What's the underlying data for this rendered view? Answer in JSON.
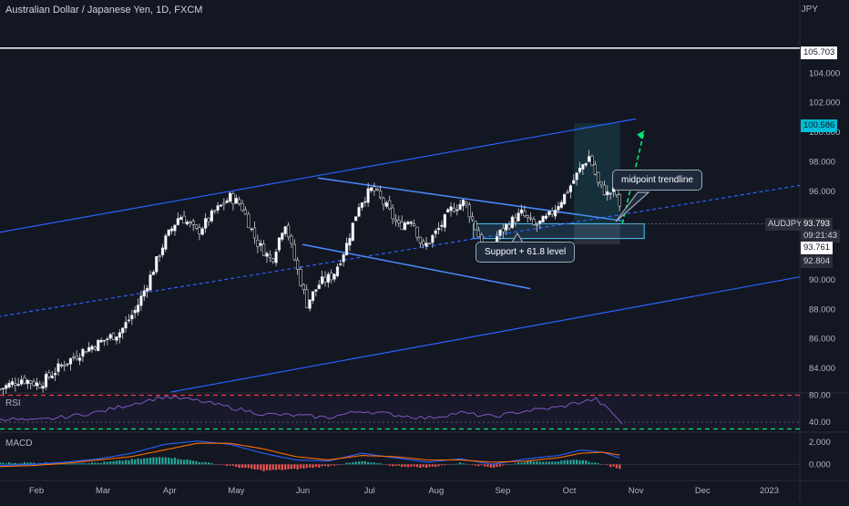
{
  "header": {
    "title": "Australian Dollar / Japanese Yen, 1D, FXCM",
    "currency": "JPY"
  },
  "price_tags": {
    "hline": "105.703",
    "target": "100.586",
    "symbol": "AUDJPY",
    "last": "93.793",
    "countdown": "09:21:43",
    "bid": "93.761",
    "support": "92.804"
  },
  "annotations": {
    "midpoint": "midpoint trendline",
    "support": "Support + 61.8 level"
  },
  "panes": {
    "rsi": "RSI",
    "macd": "MACD"
  },
  "colors": {
    "background": "#131722",
    "channel": "#2962ff",
    "up_candle": "#ffffff",
    "down_candle": "#000000",
    "rsi_line": "#7e57c2",
    "rsi_band": "#f23645",
    "rsi_mid": "#00e676",
    "macd_line": "#2962ff",
    "signal_line": "#ff6d00",
    "hist_up": "#26a69a",
    "hist_down": "#ef5350",
    "target_arrow": "#00e676",
    "target_tag": "#00bcd4"
  },
  "chart_data": {
    "type": "candlestick",
    "title": "Australian Dollar / Japanese Yen, 1D, FXCM",
    "x_ticks": [
      "Feb",
      "Mar",
      "Apr",
      "May",
      "Jun",
      "Jul",
      "Aug",
      "Sep",
      "Oct",
      "Nov",
      "Dec",
      "2023"
    ],
    "y_ticks": [
      "84.000",
      "86.000",
      "88.000",
      "90.000",
      "96.000",
      "98.000",
      "100.000",
      "102.000",
      "104.000"
    ],
    "ylim": [
      82.4,
      107.6
    ],
    "horizontal_line": 105.703,
    "close_path": [
      [
        0,
        82.6
      ],
      [
        10,
        83.3
      ],
      [
        18,
        82.9
      ],
      [
        28,
        84.2
      ],
      [
        38,
        85.2
      ],
      [
        46,
        85.8
      ],
      [
        55,
        86.5
      ],
      [
        62,
        88.0
      ],
      [
        68,
        90.0
      ],
      [
        75,
        92.6
      ],
      [
        82,
        94.4
      ],
      [
        90,
        93.2
      ],
      [
        98,
        94.6
      ],
      [
        105,
        95.6
      ],
      [
        110,
        95.1
      ],
      [
        117,
        92.6
      ],
      [
        124,
        91.3
      ],
      [
        130,
        94.0
      ],
      [
        134,
        91.6
      ],
      [
        140,
        88.4
      ],
      [
        146,
        89.8
      ],
      [
        152,
        90.3
      ],
      [
        158,
        92.3
      ],
      [
        164,
        95.2
      ],
      [
        170,
        96.2
      ],
      [
        176,
        95.0
      ],
      [
        182,
        93.6
      ],
      [
        188,
        94.2
      ],
      [
        193,
        92.1
      ],
      [
        200,
        93.4
      ],
      [
        206,
        94.8
      ],
      [
        212,
        95.3
      ],
      [
        218,
        93.2
      ],
      [
        222,
        91.0
      ],
      [
        226,
        92.8
      ],
      [
        232,
        93.8
      ],
      [
        238,
        94.5
      ],
      [
        244,
        93.6
      ],
      [
        250,
        94.2
      ],
      [
        254,
        95.0
      ],
      [
        258,
        95.8
      ],
      [
        262,
        96.8
      ],
      [
        266,
        97.8
      ],
      [
        269,
        98.4
      ],
      [
        273,
        96.5
      ],
      [
        277,
        95.8
      ],
      [
        281,
        96.1
      ],
      [
        284,
        93.8
      ]
    ],
    "channel": {
      "upper": [
        [
          -1,
          93.2
        ],
        [
          290,
          100.9
        ]
      ],
      "lower": [
        [
          78,
          82.4
        ],
        [
          365,
          90.2
        ]
      ],
      "midline": [
        [
          -1,
          87.5
        ],
        [
          365,
          96.4
        ]
      ]
    },
    "wedge": {
      "upper": [
        [
          145,
          96.9
        ],
        [
          284,
          94.0
        ]
      ],
      "lower": [
        [
          138,
          92.4
        ],
        [
          242,
          89.4
        ]
      ]
    },
    "support_zone": [
      92.8,
      93.8
    ],
    "projection_box": {
      "x": [
        262,
        283
      ],
      "y": [
        92.4,
        100.6
      ]
    },
    "target_arrow": [
      [
        284,
        93.8
      ],
      [
        294,
        100.1
      ]
    ],
    "rsi": {
      "ylim": [
        28,
        82
      ],
      "levels": [
        80,
        40,
        30
      ],
      "tick_labels": [
        "80.00",
        "40.00"
      ],
      "values": [
        [
          0,
          46
        ],
        [
          15,
          42
        ],
        [
          30,
          48
        ],
        [
          45,
          55
        ],
        [
          60,
          67
        ],
        [
          75,
          78
        ],
        [
          90,
          72
        ],
        [
          105,
          62
        ],
        [
          120,
          52
        ],
        [
          135,
          50
        ],
        [
          150,
          47
        ],
        [
          165,
          57
        ],
        [
          180,
          51
        ],
        [
          195,
          46
        ],
        [
          210,
          54
        ],
        [
          225,
          48
        ],
        [
          240,
          57
        ],
        [
          255,
          62
        ],
        [
          265,
          70
        ],
        [
          272,
          74
        ],
        [
          280,
          52
        ],
        [
          284,
          38
        ]
      ]
    },
    "macd": {
      "ylim": [
        -1.2,
        2.9
      ],
      "tick_labels": [
        "2.000",
        "0.000"
      ],
      "macd_line": [
        [
          0,
          -0.1
        ],
        [
          15,
          0.0
        ],
        [
          30,
          0.2
        ],
        [
          45,
          0.5
        ],
        [
          60,
          1.0
        ],
        [
          75,
          1.8
        ],
        [
          90,
          2.1
        ],
        [
          105,
          1.8
        ],
        [
          120,
          1.0
        ],
        [
          135,
          0.4
        ],
        [
          150,
          0.3
        ],
        [
          165,
          1.0
        ],
        [
          180,
          0.6
        ],
        [
          195,
          0.2
        ],
        [
          210,
          0.5
        ],
        [
          225,
          0.0
        ],
        [
          240,
          0.5
        ],
        [
          255,
          0.8
        ],
        [
          265,
          1.3
        ],
        [
          275,
          1.1
        ],
        [
          284,
          0.5
        ]
      ],
      "signal_line": [
        [
          0,
          -0.2
        ],
        [
          15,
          -0.1
        ],
        [
          30,
          0.1
        ],
        [
          45,
          0.4
        ],
        [
          60,
          0.7
        ],
        [
          75,
          1.3
        ],
        [
          90,
          1.9
        ],
        [
          105,
          1.9
        ],
        [
          120,
          1.4
        ],
        [
          135,
          0.7
        ],
        [
          150,
          0.4
        ],
        [
          165,
          0.8
        ],
        [
          180,
          0.7
        ],
        [
          195,
          0.4
        ],
        [
          210,
          0.4
        ],
        [
          225,
          0.2
        ],
        [
          240,
          0.3
        ],
        [
          255,
          0.6
        ],
        [
          265,
          1.0
        ],
        [
          275,
          1.1
        ],
        [
          284,
          0.8
        ]
      ]
    }
  }
}
